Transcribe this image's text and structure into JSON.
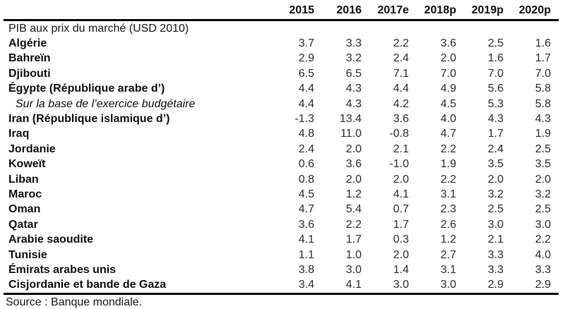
{
  "page": {
    "background": "#ffffff",
    "text_color": "#1a1a1a",
    "rule_color": "#000000"
  },
  "table": {
    "section_label": "PIB aux prix du marché (USD 2010)",
    "columns": [
      "2015",
      "2016",
      "2017e",
      "2018p",
      "2019p",
      "2020p"
    ],
    "rows": [
      {
        "label": "Algérie",
        "style": "country",
        "values": [
          "3.7",
          "3.3",
          "2.2",
          "3.6",
          "2.5",
          "1.6"
        ]
      },
      {
        "label": "Bahreïn",
        "style": "country",
        "values": [
          "2.9",
          "3.2",
          "2.4",
          "2.0",
          "1.6",
          "1.7"
        ]
      },
      {
        "label": "Djibouti",
        "style": "country",
        "values": [
          "6.5",
          "6.5",
          "7.1",
          "7.0",
          "7.0",
          "7.0"
        ]
      },
      {
        "label": "Égypte (République arabe d’)",
        "style": "country",
        "values": [
          "4.4",
          "4.3",
          "4.4",
          "4.9",
          "5.6",
          "5.8"
        ]
      },
      {
        "label": "Sur la base de l’exercice budgétaire",
        "style": "sub-italic",
        "values": [
          "4.4",
          "4.3",
          "4.2",
          "4.5",
          "5.3",
          "5.8"
        ]
      },
      {
        "label": "Iran (République islamique d’)",
        "style": "country",
        "values": [
          "-1.3",
          "13.4",
          "3.6",
          "4.0",
          "4.3",
          "4.3"
        ]
      },
      {
        "label": "Iraq",
        "style": "country",
        "values": [
          "4.8",
          "11.0",
          "-0.8",
          "4.7",
          "1.7",
          "1.9"
        ]
      },
      {
        "label": "Jordanie",
        "style": "country",
        "values": [
          "2.4",
          "2.0",
          "2.1",
          "2.2",
          "2.4",
          "2.5"
        ]
      },
      {
        "label": "Koweït",
        "style": "country",
        "values": [
          "0.6",
          "3.6",
          "-1.0",
          "1.9",
          "3.5",
          "3.5"
        ]
      },
      {
        "label": "Liban",
        "style": "country",
        "values": [
          "0.8",
          "2.0",
          "2.0",
          "2.2",
          "2.0",
          "2.0"
        ]
      },
      {
        "label": "Maroc",
        "style": "country",
        "values": [
          "4.5",
          "1.2",
          "4.1",
          "3.1",
          "3.2",
          "3.2"
        ]
      },
      {
        "label": "Oman",
        "style": "country",
        "values": [
          "4.7",
          "5.4",
          "0.7",
          "2.3",
          "2.5",
          "2.5"
        ]
      },
      {
        "label": "Qatar",
        "style": "country",
        "values": [
          "3.6",
          "2.2",
          "1.7",
          "2.6",
          "3.0",
          "3.0"
        ]
      },
      {
        "label": "Arabie saoudite",
        "style": "country",
        "values": [
          "4.1",
          "1.7",
          "0.3",
          "1.2",
          "2.1",
          "2.2"
        ]
      },
      {
        "label": "Tunisie",
        "style": "country",
        "values": [
          "1.1",
          "1.0",
          "2.0",
          "2.7",
          "3.3",
          "4.0"
        ]
      },
      {
        "label": "Émirats arabes unis",
        "style": "country",
        "values": [
          "3.8",
          "3.0",
          "1.4",
          "3.1",
          "3.3",
          "3.3"
        ]
      },
      {
        "label": "Cisjordanie et bande de Gaza",
        "style": "country",
        "values": [
          "3.4",
          "4.1",
          "3.0",
          "3.0",
          "2.9",
          "2.9"
        ]
      }
    ],
    "source": "Source : Banque mondiale."
  }
}
